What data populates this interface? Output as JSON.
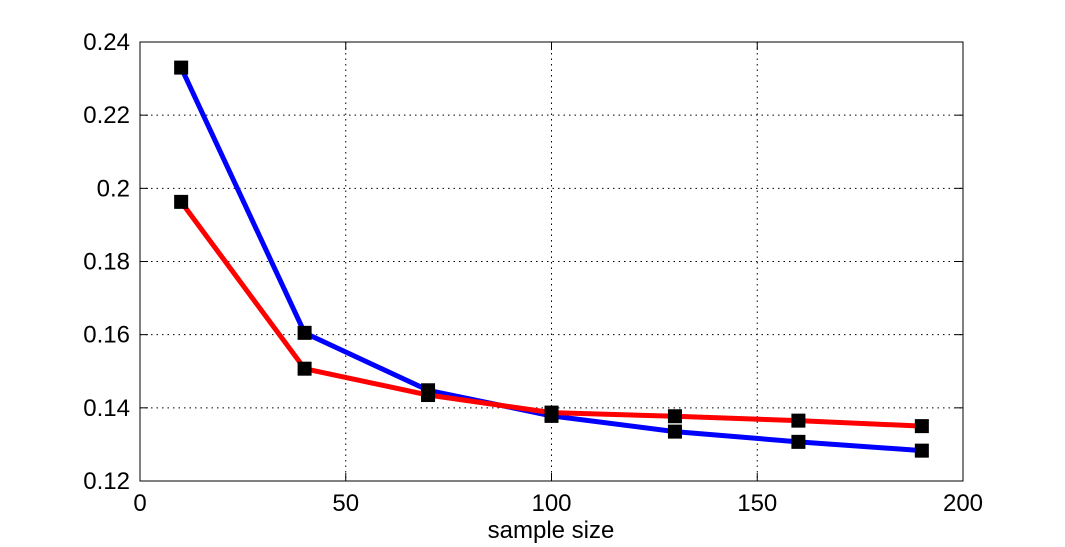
{
  "chart_data": {
    "type": "line",
    "title": "",
    "xlabel": "sample size",
    "ylabel": "",
    "xlim": [
      0,
      200
    ],
    "ylim": [
      0.12,
      0.24
    ],
    "x_ticks": [
      0,
      50,
      100,
      150,
      200
    ],
    "x_tick_labels": [
      "0",
      "50",
      "100",
      "150",
      "200"
    ],
    "y_ticks": [
      0.12,
      0.14,
      0.16,
      0.18,
      0.2,
      0.22,
      0.24
    ],
    "y_tick_labels": [
      "0.12",
      "0.14",
      "0.16",
      "0.18",
      "0.2",
      "0.22",
      "0.24"
    ],
    "grid": true,
    "marker": "square",
    "x": [
      10,
      40,
      70,
      100,
      130,
      160,
      190
    ],
    "series": [
      {
        "color": "#0000ff",
        "values": [
          0.233,
          0.1605,
          0.1448,
          0.1378,
          0.1335,
          0.1307,
          0.1283
        ]
      },
      {
        "color": "#ff0000",
        "values": [
          0.1963,
          0.1507,
          0.1435,
          0.1387,
          0.1377,
          0.1365,
          0.135
        ]
      }
    ]
  }
}
